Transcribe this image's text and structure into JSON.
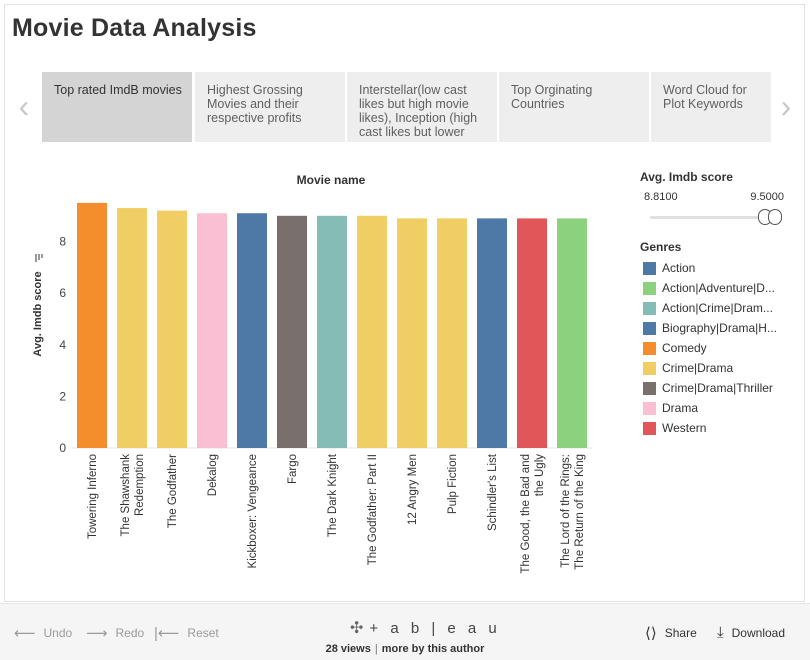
{
  "page": {
    "title": "Movie Data Analysis"
  },
  "tabs": [
    {
      "label": "Top rated ImdB movies",
      "active": true
    },
    {
      "label": "Highest Grossing Movies and their respective profits",
      "active": false
    },
    {
      "label": "Interstellar(low cast likes but high movie likes), Inception (high cast likes but lower",
      "active": false
    },
    {
      "label": "Top Orginating Countries",
      "active": false
    },
    {
      "label": "Word Cloud for Plot Keywords",
      "active": false
    }
  ],
  "nav": {
    "prev_icon": "chevron-left-icon",
    "next_icon": "chevron-right-icon"
  },
  "filter": {
    "title": "Avg. Imdb score",
    "min": "8.8100",
    "max": "9.5000"
  },
  "legend": {
    "title": "Genres",
    "items": [
      {
        "label": "Action",
        "color": "#4e79a7"
      },
      {
        "label": "Action|Adventure|D...",
        "color": "#8cd17d"
      },
      {
        "label": "Action|Crime|Dram...",
        "color": "#86bcb6"
      },
      {
        "label": "Biography|Drama|H...",
        "color": "#4e79a7"
      },
      {
        "label": "Comedy",
        "color": "#f28e2b"
      },
      {
        "label": "Crime|Drama",
        "color": "#f1ce63"
      },
      {
        "label": "Crime|Drama|Thriller",
        "color": "#79706e"
      },
      {
        "label": "Drama",
        "color": "#fabfd2"
      },
      {
        "label": "Western",
        "color": "#e15759"
      }
    ]
  },
  "chart_data": {
    "type": "bar",
    "title": "Movie name",
    "ylabel": "Avg. Imdb score",
    "sort_icon": "sort-descending-icon",
    "ylim": [
      0,
      9.5
    ],
    "yticks": [
      0,
      2,
      4,
      6,
      8
    ],
    "grid": false,
    "categories": [
      [
        "Towering Inferno"
      ],
      [
        "The Shawshank",
        "Redemption"
      ],
      [
        "The Godfather"
      ],
      [
        "Dekalog"
      ],
      [
        "Kickboxer: Vengeance"
      ],
      [
        "Fargo"
      ],
      [
        "The Dark Knight"
      ],
      [
        "The Godfather: Part II"
      ],
      [
        "12 Angry Men"
      ],
      [
        "Pulp Fiction"
      ],
      [
        "Schindler's List"
      ],
      [
        "The Good, the Bad and",
        "the Ugly"
      ],
      [
        "The Lord of the Rings:",
        "The Return of the King"
      ]
    ],
    "values": [
      9.5,
      9.3,
      9.2,
      9.1,
      9.1,
      9.0,
      9.0,
      9.0,
      8.9,
      8.9,
      8.9,
      8.9,
      8.9
    ],
    "genres": [
      "Comedy",
      "Crime|Drama",
      "Crime|Drama",
      "Drama",
      "Action",
      "Crime|Drama|Thriller",
      "Action|Crime|Dram...",
      "Crime|Drama",
      "Crime|Drama",
      "Crime|Drama",
      "Biography|Drama|H...",
      "Western",
      "Action|Adventure|D..."
    ],
    "colors": [
      "#f28e2b",
      "#f1ce63",
      "#f1ce63",
      "#fabfd2",
      "#4e79a7",
      "#79706e",
      "#86bcb6",
      "#f1ce63",
      "#f1ce63",
      "#f1ce63",
      "#4e79a7",
      "#e15759",
      "#8cd17d"
    ]
  },
  "toolbar": {
    "undo": "Undo",
    "redo": "Redo",
    "reset": "Reset",
    "logo": "+ a b | e a u",
    "views": "28 views",
    "author": "more by this author",
    "share": "Share",
    "download": "Download"
  }
}
